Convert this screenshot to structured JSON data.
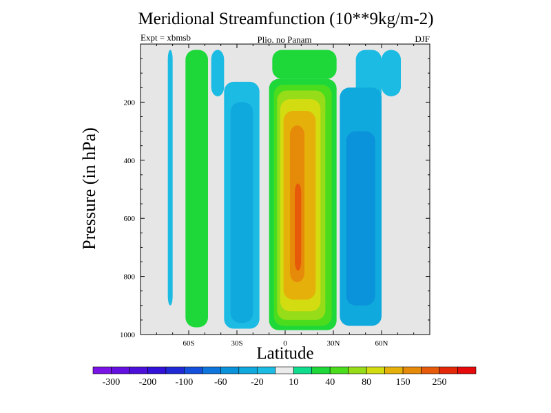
{
  "chart_data": {
    "type": "contour",
    "title": "Meridional Streamfunction (10**9kg/m-2)",
    "left_label": "Expt = xbmsb",
    "center_label": "Plio. no Panam",
    "right_label": "DJF",
    "xlabel": "Latitude",
    "ylabel": "Pressure (in hPa)",
    "xlim": [
      -90,
      90
    ],
    "ylim": [
      1000,
      0
    ],
    "x_tick_labels": [
      {
        "value": -60,
        "label": "60S"
      },
      {
        "value": -30,
        "label": "30S"
      },
      {
        "value": 0,
        "label": "0"
      },
      {
        "value": 30,
        "label": "30N"
      },
      {
        "value": 60,
        "label": "60N"
      }
    ],
    "y_ticks": [
      200,
      400,
      600,
      800,
      1000
    ],
    "background_color": "#e6e6e6",
    "levels": [
      -300,
      -250,
      -200,
      -150,
      -100,
      -80,
      -60,
      -40,
      -20,
      -10,
      10,
      20,
      40,
      60,
      80,
      100,
      150,
      200,
      250,
      300
    ],
    "level_colors": [
      "#7a13e6",
      "#6410e0",
      "#4d10db",
      "#3212d8",
      "#1f2ad6",
      "#1450db",
      "#0e75dd",
      "#0a92da",
      "#10a9dd",
      "#1cbbe3",
      "#ebebeb",
      "#10dc8e",
      "#1ed83a",
      "#4cdc1e",
      "#96dc18",
      "#d3dc10",
      "#e6b00a",
      "#e68a0a",
      "#e65a0a",
      "#e6280a",
      "#e60a0a"
    ],
    "colorbar_labels": [
      "-300",
      "-200",
      "-100",
      "-60",
      "-20",
      "10",
      "40",
      "80",
      "150",
      "250"
    ],
    "cells": [
      {
        "lat": [
          -73,
          -70
        ],
        "p": [
          20,
          900
        ],
        "value": -15
      },
      {
        "lat": [
          -62,
          -48
        ],
        "p": [
          20,
          975
        ],
        "value": 30
      },
      {
        "lat": [
          -46,
          -38
        ],
        "p": [
          20,
          180
        ],
        "value": -15
      },
      {
        "lat": [
          -38,
          -16
        ],
        "p": [
          130,
          980
        ],
        "value": -15
      },
      {
        "lat": [
          -34,
          -20
        ],
        "p": [
          200,
          960
        ],
        "value": -35
      },
      {
        "lat": [
          -8,
          32
        ],
        "p": [
          20,
          120
        ],
        "value": 30
      },
      {
        "lat": [
          -10,
          32
        ],
        "p": [
          120,
          985
        ],
        "value": 30
      },
      {
        "lat": [
          -7,
          29
        ],
        "p": [
          140,
          970
        ],
        "value": 50
      },
      {
        "lat": [
          -5,
          25
        ],
        "p": [
          160,
          950
        ],
        "value": 70
      },
      {
        "lat": [
          -3,
          22
        ],
        "p": [
          190,
          920
        ],
        "value": 90
      },
      {
        "lat": [
          -1,
          19
        ],
        "p": [
          230,
          880
        ],
        "value": 120
      },
      {
        "lat": [
          3,
          12
        ],
        "p": [
          280,
          820
        ],
        "value": 170
      },
      {
        "lat": [
          6,
          10
        ],
        "p": [
          480,
          780
        ],
        "value": 220
      },
      {
        "lat": [
          44,
          60
        ],
        "p": [
          20,
          200
        ],
        "value": -15
      },
      {
        "lat": [
          34,
          60
        ],
        "p": [
          150,
          970
        ],
        "value": -25
      },
      {
        "lat": [
          38,
          56
        ],
        "p": [
          300,
          900
        ],
        "value": -50
      },
      {
        "lat": [
          60,
          72
        ],
        "p": [
          20,
          180
        ],
        "value": -12
      }
    ]
  }
}
